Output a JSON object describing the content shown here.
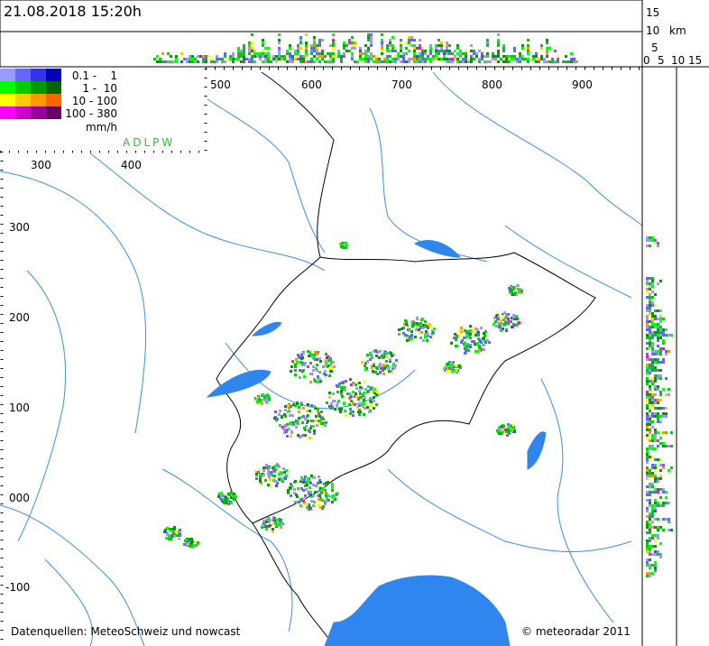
{
  "header": {
    "timestamp": "21.08.2018 15:20h"
  },
  "height_axis": {
    "labels": [
      "15",
      "10",
      "5"
    ],
    "unit": "km",
    "bottom_labels": [
      "0",
      "5",
      "10",
      "15"
    ]
  },
  "legend": {
    "rows": [
      "0.1 -    1",
      "1 -  10",
      "10 - 100",
      "100 - 380"
    ],
    "unit": "mm/h",
    "stations": "ADLPW"
  },
  "map": {
    "x_labels_top": [
      "500",
      "600",
      "700",
      "800",
      "900"
    ],
    "x_labels_inner": [
      "300",
      "400"
    ],
    "y_labels": [
      "300",
      "200",
      "100",
      "000",
      "-100"
    ]
  },
  "footer": {
    "source": "Datenquellen: MeteoSchweiz und nowcast",
    "copyright": "© meteoradar 2011"
  }
}
